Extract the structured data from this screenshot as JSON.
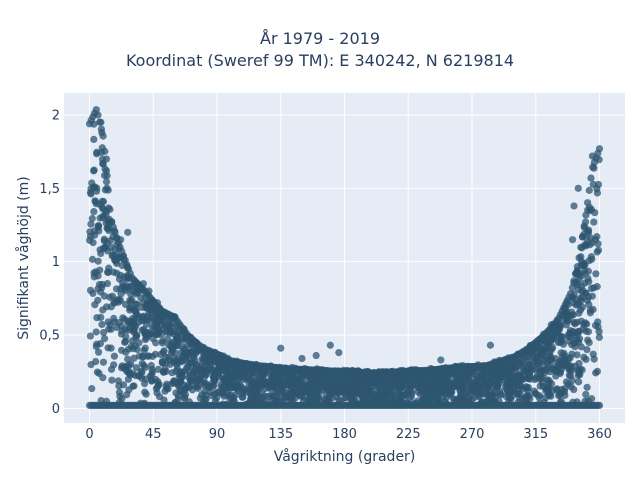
{
  "title_line1": "År 1979 - 2019",
  "title_line2": "Koordinat (Sweref 99 TM): E 340242, N 6219814",
  "colors": {
    "plot_bg": "#e5ecf6",
    "grid": "#ffffff",
    "marker": "#2e5670"
  },
  "chart_data": {
    "type": "scatter",
    "title": "År 1979 - 2019\nKoordinat (Sweref 99 TM): E 340242, N 6219814",
    "xlabel": "Vågriktning (grader)",
    "ylabel": "Signifikant våghöjd (m)",
    "xlim": [
      -18,
      378
    ],
    "ylim": [
      -0.1,
      2.15
    ],
    "grid": true,
    "x_ticks": [
      0,
      45,
      90,
      135,
      180,
      225,
      270,
      315,
      360
    ],
    "x_tick_labels": [
      "0",
      "45",
      "90",
      "135",
      "180",
      "225",
      "270",
      "315",
      "360"
    ],
    "y_ticks": [
      0,
      0.5,
      1,
      1.5,
      2
    ],
    "y_tick_labels": [
      "0",
      "0,5",
      "1",
      "1,5",
      "2"
    ],
    "envelope": {
      "description_of_series": "dense point cloud; upper envelope of wave height by direction",
      "x": [
        0,
        5,
        10,
        15,
        20,
        30,
        40,
        50,
        60,
        70,
        80,
        90,
        100,
        120,
        140,
        160,
        180,
        200,
        220,
        240,
        260,
        280,
        300,
        310,
        320,
        330,
        340,
        345,
        350,
        355,
        360
      ],
      "y": [
        1.95,
        2.05,
        1.85,
        1.3,
        1.15,
        0.9,
        0.8,
        0.68,
        0.63,
        0.5,
        0.42,
        0.38,
        0.33,
        0.3,
        0.28,
        0.27,
        0.26,
        0.25,
        0.26,
        0.27,
        0.29,
        0.3,
        0.36,
        0.42,
        0.5,
        0.6,
        0.8,
        1.0,
        1.3,
        1.65,
        1.78
      ]
    },
    "outliers": [
      {
        "x": 27,
        "y": 1.2
      },
      {
        "x": 22,
        "y": 1.15
      },
      {
        "x": 38,
        "y": 0.85
      },
      {
        "x": 42,
        "y": 0.8
      },
      {
        "x": 48,
        "y": 0.72
      },
      {
        "x": 135,
        "y": 0.41
      },
      {
        "x": 150,
        "y": 0.34
      },
      {
        "x": 170,
        "y": 0.43
      },
      {
        "x": 176,
        "y": 0.38
      },
      {
        "x": 160,
        "y": 0.36
      },
      {
        "x": 283,
        "y": 0.43
      },
      {
        "x": 248,
        "y": 0.33
      },
      {
        "x": 330,
        "y": 0.6
      },
      {
        "x": 326,
        "y": 0.57
      },
      {
        "x": 337,
        "y": 0.72
      },
      {
        "x": 342,
        "y": 1.38
      },
      {
        "x": 345,
        "y": 1.5
      },
      {
        "x": 355,
        "y": 1.72
      },
      {
        "x": 341,
        "y": 1.15
      },
      {
        "x": 8,
        "y": 1.95
      },
      {
        "x": 12,
        "y": 1.7
      }
    ]
  }
}
